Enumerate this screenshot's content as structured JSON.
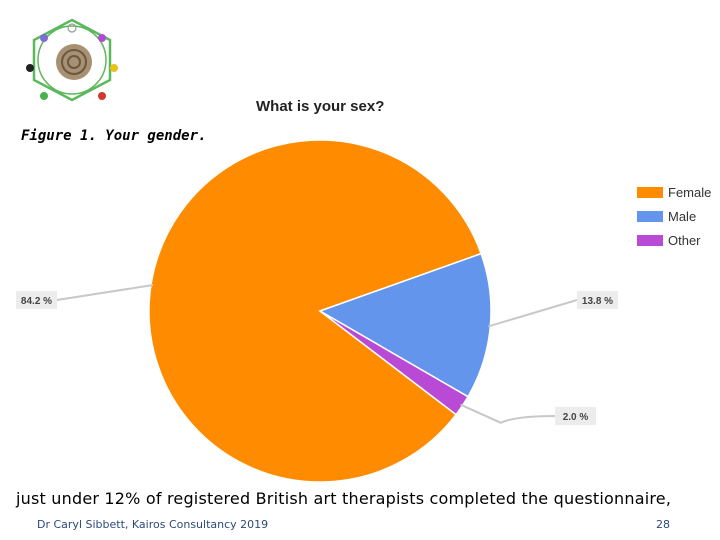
{
  "caption": "Figure 1. Your gender.",
  "chart_data": {
    "type": "pie",
    "title": "What is your sex?",
    "categories": [
      "Female",
      "Male",
      "Other"
    ],
    "values": [
      84.2,
      13.8,
      2.0
    ],
    "labels": [
      "84.2 %",
      "13.8 %",
      "2.0 %"
    ],
    "colors": [
      "#ff8c00",
      "#6495ed",
      "#b84ad6"
    ],
    "legend_position": "right"
  },
  "body_text": "just under 12% of registered British art therapists completed the questionnaire,",
  "footer": {
    "author": "Dr Caryl Sibbett, Kairos Consultancy 2019",
    "page": "28"
  }
}
